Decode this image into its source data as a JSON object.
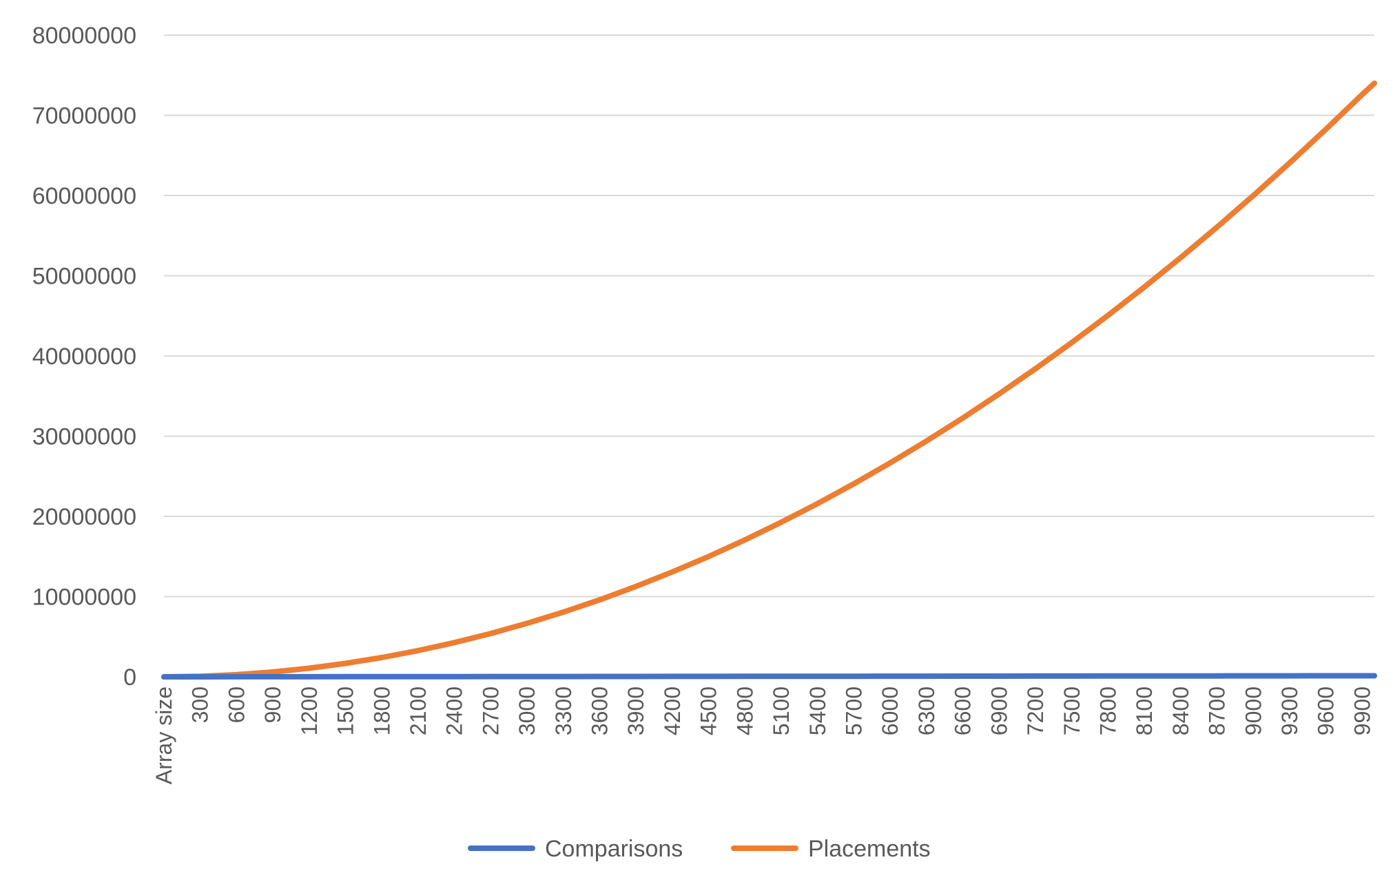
{
  "chart_data": {
    "type": "line",
    "title": "",
    "xlabel": "",
    "ylabel": "",
    "ylim": [
      0,
      80000000
    ],
    "yticks": [
      "0",
      "10000000",
      "20000000",
      "30000000",
      "40000000",
      "50000000",
      "60000000",
      "70000000",
      "80000000"
    ],
    "x_categories": [
      "Array size",
      "300",
      "600",
      "900",
      "1200",
      "1500",
      "1800",
      "2100",
      "2400",
      "2700",
      "3000",
      "3300",
      "3600",
      "3900",
      "4200",
      "4500",
      "4800",
      "5100",
      "5400",
      "5700",
      "6000",
      "6300",
      "6600",
      "6900",
      "7200",
      "7500",
      "7800",
      "8100",
      "8400",
      "8700",
      "9000",
      "9300",
      "9600",
      "9900"
    ],
    "x_range": [
      0,
      10000
    ],
    "grid": true,
    "legend_position": "bottom",
    "colors": {
      "comparisons": "#4472C4",
      "placements": "#ED7D31",
      "grid": "#D9D9D9",
      "text": "#595959"
    },
    "series": [
      {
        "name": "Comparisons",
        "x": [
          0,
          300,
          600,
          900,
          1200,
          1500,
          1800,
          2100,
          2400,
          2700,
          3000,
          3300,
          3600,
          3900,
          4200,
          4500,
          4800,
          5100,
          5400,
          5700,
          6000,
          6300,
          6600,
          6900,
          7200,
          7500,
          7800,
          8100,
          8400,
          8700,
          9000,
          9300,
          9600,
          9900,
          10000
        ],
        "values": [
          0,
          2400,
          5500,
          8800,
          12300,
          15800,
          19500,
          23200,
          27000,
          30800,
          34700,
          38600,
          42500,
          46500,
          50500,
          54500,
          58500,
          62600,
          66700,
          70800,
          75000,
          79100,
          83300,
          87500,
          91700,
          95900,
          100200,
          104400,
          108700,
          113000,
          117300,
          121600,
          125900,
          130300,
          131700
        ]
      },
      {
        "name": "Placements",
        "x": [
          0,
          300,
          600,
          900,
          1200,
          1500,
          1800,
          2100,
          2400,
          2700,
          3000,
          3300,
          3600,
          3900,
          4200,
          4500,
          4800,
          5100,
          5400,
          5700,
          6000,
          6300,
          6600,
          6900,
          7200,
          7500,
          7800,
          8100,
          8400,
          8700,
          9000,
          9300,
          9600,
          9900,
          10000
        ],
        "values": [
          0,
          67000,
          270000,
          600000,
          1070000,
          1670000,
          2400000,
          3270000,
          4270000,
          5400000,
          6670000,
          8070000,
          9600000,
          11270000,
          13070000,
          15000000,
          17070000,
          19270000,
          21600000,
          24070000,
          26670000,
          29400000,
          32270000,
          35270000,
          38400000,
          41670000,
          45070000,
          48600000,
          52270000,
          56070000,
          60000000,
          64070000,
          68270000,
          72600000,
          74000000
        ]
      }
    ]
  }
}
